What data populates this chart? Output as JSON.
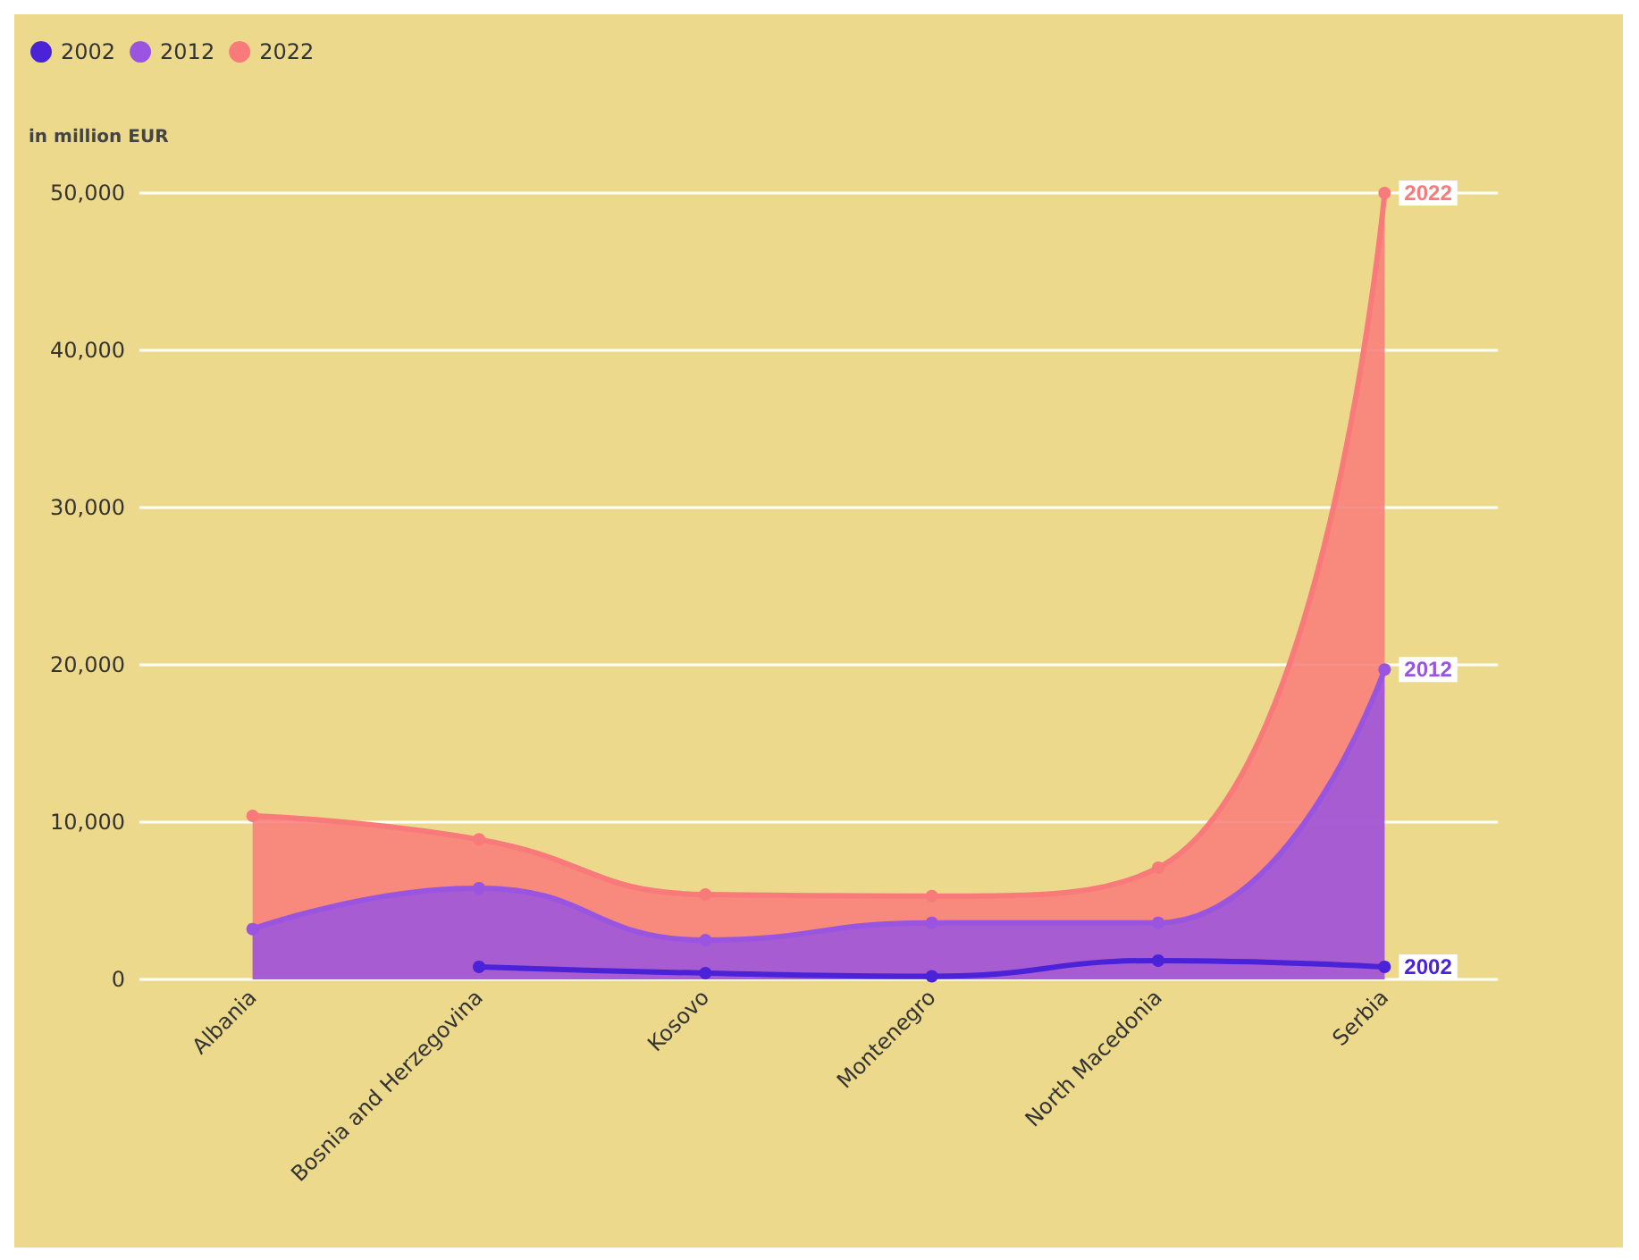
{
  "chart_data": {
    "type": "area",
    "ylabel": "in million EUR",
    "categories": [
      "Albania",
      "Bosnia and Herzegovina",
      "Kosovo",
      "Montenegro",
      "North Macedonia",
      "Serbia"
    ],
    "series": [
      {
        "name": "2002",
        "type": "line",
        "color": "#4a22d8",
        "values": [
          null,
          800,
          400,
          200,
          1200,
          800
        ]
      },
      {
        "name": "2012",
        "color": "#9a55e0",
        "values": [
          3200,
          5800,
          2500,
          3600,
          3600,
          19700
        ]
      },
      {
        "name": "2022",
        "color": "#f97a7a",
        "values": [
          10400,
          8900,
          5400,
          5300,
          7100,
          50000
        ]
      }
    ],
    "ylim": [
      0,
      50000
    ],
    "yticks": [
      {
        "value": 0,
        "label": "0"
      },
      {
        "value": 10000,
        "label": "10,000"
      },
      {
        "value": 20000,
        "label": "20,000"
      },
      {
        "value": 30000,
        "label": "30,000"
      },
      {
        "value": 40000,
        "label": "40,000"
      },
      {
        "value": 50000,
        "label": "50,000"
      }
    ],
    "grid": "y",
    "legend": "top left",
    "marker": "circle"
  }
}
